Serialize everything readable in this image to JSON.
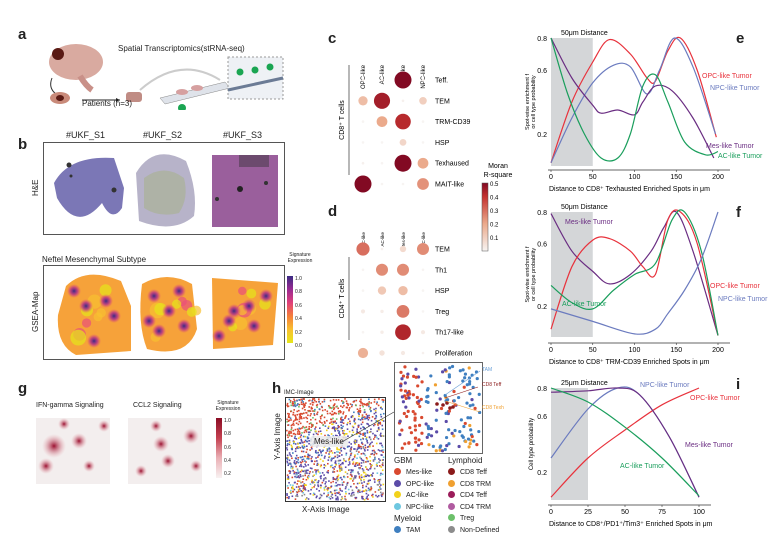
{
  "panel_letters": {
    "a": "a",
    "b": "b",
    "c": "c",
    "d": "d",
    "e": "e",
    "f": "f",
    "g": "g",
    "h": "h",
    "i": "i"
  },
  "panel_a": {
    "title": "Spatial Transcriptomics(stRNA-seq)",
    "patients": "Patients (n=3)"
  },
  "panel_b": {
    "samples": [
      "#UKF_S1",
      "#UKF_S2",
      "#UKF_S3"
    ],
    "row_he": "H&E",
    "row_gsea": "GSEA-Map",
    "gsea_title": "Neftel Mesenchymal Subtype",
    "colorbar_title": "Signature Expression",
    "colorbar_ticks": [
      "1.0",
      "0.8",
      "0.6",
      "0.4",
      "0.2",
      "0.0"
    ]
  },
  "panel_g": {
    "titles": [
      "IFN-gamma Signaling",
      "CCL2 Signaling"
    ],
    "colorbar_title": "Signature Expression",
    "colorbar_ticks": [
      "1.0",
      "0.8",
      "0.6",
      "0.4",
      "0.2"
    ]
  },
  "panel_h": {
    "image_title": "IMC-Image",
    "ylabel": "Y-Axis Image",
    "xlabel": "X-Axis Image",
    "callout": "Mes-like",
    "inset_labels": [
      "TAM",
      "CD8 Teff",
      "CD8 Texh"
    ],
    "legend": {
      "groups": [
        {
          "title": "GBM",
          "items": [
            {
              "label": "Mes-like",
              "color": "#d9492f"
            },
            {
              "label": "OPC-like",
              "color": "#5b4ba8"
            },
            {
              "label": "AC-like",
              "color": "#f2d21b"
            },
            {
              "label": "NPC-like",
              "color": "#6ec7e0"
            }
          ]
        },
        {
          "title": "Lymphoid",
          "items": [
            {
              "label": "CD8 Teff",
              "color": "#8b1a1a"
            },
            {
              "label": "CD8 TRM",
              "color": "#f0a030"
            },
            {
              "label": "CD4 Teff",
              "color": "#9b1c5a"
            },
            {
              "label": "CD4 TRM",
              "color": "#b05ba0"
            },
            {
              "label": "Treg",
              "color": "#6cc06a"
            }
          ]
        },
        {
          "title": "Myeloid",
          "items": [
            {
              "label": "TAM",
              "color": "#3f7fc0"
            },
            {
              "label": "Non-Defined",
              "color": "#8c8c8c"
            }
          ]
        }
      ]
    }
  },
  "chart_data": [
    {
      "id": "c",
      "type": "dot",
      "ylabel": "CD8⁺ T cells",
      "columns": [
        "OPC-like",
        "AC-like",
        "Mes-like",
        "NPC-like"
      ],
      "rows": [
        "Teff.",
        "TEM",
        "TRM-CD39",
        "HSP",
        "Texhaused",
        "MAIT-like"
      ],
      "values": [
        [
          0.01,
          0.01,
          0.5,
          0.01
        ],
        [
          0.15,
          0.45,
          0.01,
          0.1
        ],
        [
          0,
          0.2,
          0.42,
          0
        ],
        [
          0,
          0,
          0.08,
          0
        ],
        [
          0.01,
          0,
          0.5,
          0.2
        ],
        [
          0.5,
          0,
          0,
          0.24
        ]
      ],
      "legend_title": "Moran R-square",
      "legend_ticks": [
        "0.5",
        "0.4",
        "0.3",
        "0.2",
        "0.1"
      ],
      "range": [
        0,
        0.5
      ]
    },
    {
      "id": "d",
      "type": "dot",
      "ylabel": "CD4⁺ T cells",
      "columns": [
        "OPC-like",
        "AC-like",
        "Mes-like",
        "NPC-like"
      ],
      "rows": [
        "TEM",
        "Th1",
        "HSP",
        "Treg",
        "Th17-like",
        "Proliferation"
      ],
      "values": [
        [
          0.3,
          0.01,
          0.07,
          0.25
        ],
        [
          0,
          0.25,
          0.25,
          0
        ],
        [
          0,
          0.12,
          0.15,
          0
        ],
        [
          0.03,
          0.02,
          0.28,
          0
        ],
        [
          0,
          0.02,
          0.43,
          0.03
        ],
        [
          0.18,
          0.05,
          0.03,
          0.01
        ]
      ],
      "range": [
        0,
        0.5
      ]
    },
    {
      "id": "e",
      "type": "line",
      "title": "50μm Distance",
      "xlabel": "Distance to CD8⁺ Texhausted Enriched Spots in μm",
      "ylabel": "Spot-wise enrichment f or cell type probability",
      "xlim": [
        0,
        200
      ],
      "xticks": [
        0,
        50,
        100,
        150,
        200
      ],
      "ylim": [
        0,
        0.8
      ],
      "yticks": [
        "0.8",
        "0.6",
        "0.2"
      ],
      "shaded": [
        0,
        50
      ],
      "series": [
        {
          "name": "OPC-like Tumor",
          "color": "#e8323c",
          "x": [
            0,
            25,
            50,
            70,
            95,
            115,
            125,
            140,
            155,
            175,
            198
          ],
          "y": [
            0.02,
            0.4,
            0.65,
            0.79,
            0.7,
            0.55,
            0.53,
            0.72,
            0.8,
            0.6,
            0.18
          ]
        },
        {
          "name": "NPC-like Tumor",
          "color": "#6b7bbf",
          "x": [
            0,
            25,
            50,
            75,
            95,
            115,
            130,
            148,
            170,
            197
          ],
          "y": [
            0.02,
            0.3,
            0.52,
            0.63,
            0.62,
            0.45,
            0.6,
            0.8,
            0.62,
            0.2
          ]
        },
        {
          "name": "Mes-like Tumor",
          "color": "#6a2d82",
          "x": [
            0,
            25,
            50,
            60,
            80,
            100,
            110,
            125,
            145,
            170,
            195
          ],
          "y": [
            0.8,
            0.55,
            0.38,
            0.33,
            0.35,
            0.32,
            0.4,
            0.5,
            0.47,
            0.3,
            0.05
          ]
        },
        {
          "name": "AC-like Tumor",
          "color": "#1a9e5c",
          "x": [
            0,
            20,
            40,
            60,
            80,
            95,
            110,
            125,
            140,
            160,
            185,
            200
          ],
          "y": [
            0.8,
            0.45,
            0.2,
            0.05,
            0.05,
            0.2,
            0.5,
            0.57,
            0.4,
            0.15,
            0.07,
            0.09
          ]
        }
      ]
    },
    {
      "id": "f",
      "type": "line",
      "title": "50μm Distance",
      "xlabel": "Distance to CD8⁺ TRM-CD39 Enriched Spots in μm",
      "ylabel": "Spot-wise enrichment f or cell type probability",
      "xlim": [
        0,
        200
      ],
      "xticks": [
        0,
        50,
        100,
        150,
        200
      ],
      "ylim": [
        0,
        0.8
      ],
      "yticks": [
        "0.8",
        "0.6",
        "0.2"
      ],
      "shaded": [
        0,
        50
      ],
      "series": [
        {
          "name": "Mes-like Tumor",
          "color": "#6a2d82",
          "x": [
            0,
            25,
            50,
            70,
            95,
            120,
            135,
            150,
            170,
            200
          ],
          "y": [
            0.79,
            0.55,
            0.42,
            0.34,
            0.4,
            0.55,
            0.7,
            0.8,
            0.55,
            0.01
          ]
        },
        {
          "name": "OPC-like Tumor",
          "color": "#e8323c",
          "x": [
            0,
            25,
            50,
            70,
            95,
            110,
            125,
            140,
            155,
            175,
            200
          ],
          "y": [
            0.05,
            0.45,
            0.62,
            0.63,
            0.55,
            0.45,
            0.4,
            0.75,
            0.8,
            0.6,
            0.01
          ]
        },
        {
          "name": "AC-like Tumor",
          "color": "#1a9e5c",
          "x": [
            0,
            25,
            50,
            75,
            100,
            125,
            145,
            160,
            180,
            200
          ],
          "y": [
            0.33,
            0.22,
            0.18,
            0.3,
            0.4,
            0.47,
            0.75,
            0.8,
            0.55,
            0.01
          ]
        },
        {
          "name": "NPC-like Tumor",
          "color": "#6b7bbf",
          "x": [
            0,
            50,
            100,
            125,
            140,
            160,
            180,
            200
          ],
          "y": [
            0.18,
            0.1,
            0.02,
            0.05,
            0.15,
            0.3,
            0.5,
            0.8
          ]
        }
      ]
    },
    {
      "id": "i",
      "type": "line",
      "title": "25μm Distance",
      "xlabel": "Distance to CD8⁺/PD1⁺/Tim3⁺ Enriched Spots in μm",
      "ylabel": "Cell type probability",
      "xlim": [
        0,
        100
      ],
      "xticks": [
        0,
        25,
        50,
        75,
        100
      ],
      "ylim": [
        0,
        0.8
      ],
      "yticks": [
        "0.8",
        "0.6",
        "0.2"
      ],
      "shaded": [
        0,
        25
      ],
      "series": [
        {
          "name": "NPC-like Tumor",
          "color": "#6b7bbf",
          "x": [
            0,
            25,
            45,
            60,
            80,
            100
          ],
          "y": [
            0.3,
            0.65,
            0.8,
            0.75,
            0.45,
            0.02
          ]
        },
        {
          "name": "OPC-like Tumor",
          "color": "#e8323c",
          "x": [
            0,
            25,
            50,
            75,
            100
          ],
          "y": [
            0.02,
            0.3,
            0.5,
            0.68,
            0.8
          ]
        },
        {
          "name": "Mes-like Tumor",
          "color": "#6a2d82",
          "x": [
            0,
            25,
            45,
            60,
            80,
            100
          ],
          "y": [
            0.77,
            0.78,
            0.8,
            0.75,
            0.45,
            0.02
          ]
        },
        {
          "name": "AC-like Tumor",
          "color": "#1a9e5c",
          "x": [
            0,
            25,
            50,
            75,
            100
          ],
          "y": [
            0.8,
            0.7,
            0.52,
            0.3,
            0.03
          ]
        }
      ]
    }
  ]
}
